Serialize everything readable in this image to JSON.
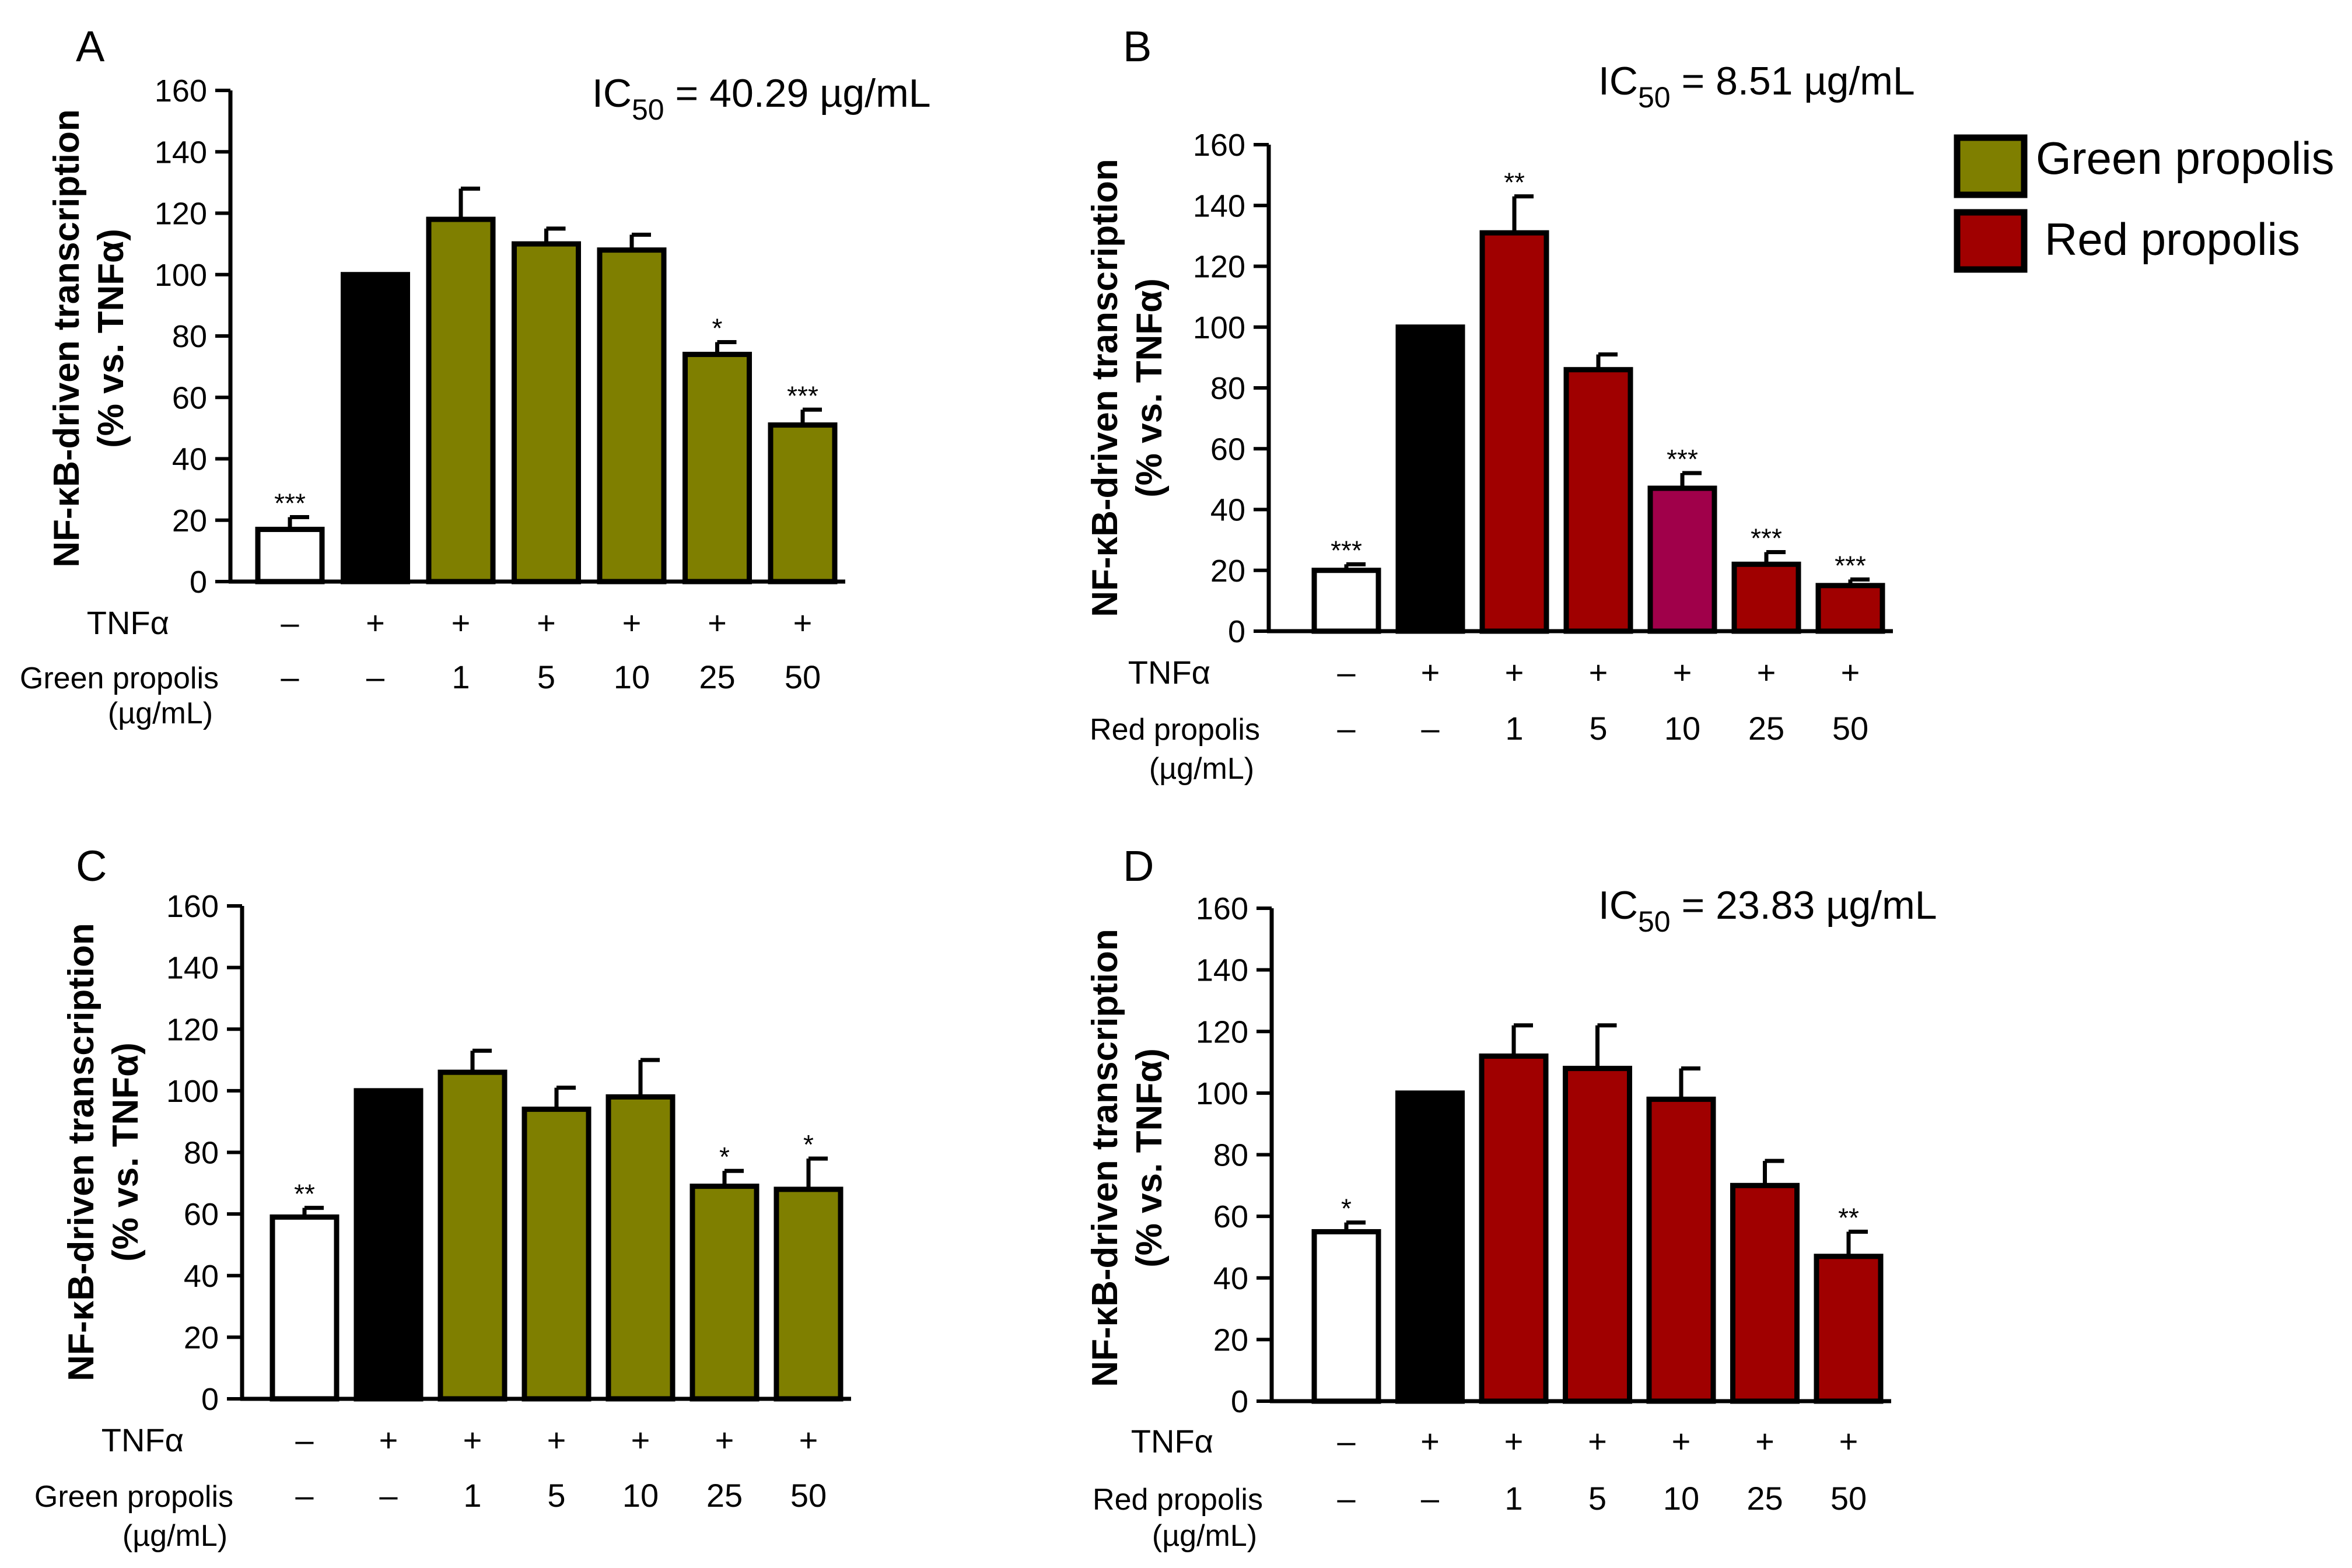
{
  "legend": {
    "items": [
      {
        "label": "Green propolis",
        "color": "#7f7f00"
      },
      {
        "label": "Red propolis",
        "color": "#a00000"
      }
    ]
  },
  "chart_data": [
    {
      "panel": "A",
      "type": "bar",
      "ic50": {
        "prefix": "IC",
        "sub": "50",
        "suffix": " = 40.29 µg/mL"
      },
      "ylabel": [
        "NF-κB-driven transcription",
        "(% vs. TNFα)"
      ],
      "ylim": [
        0,
        160
      ],
      "yticks": [
        0,
        20,
        40,
        60,
        80,
        100,
        120,
        140,
        160
      ],
      "values": [
        17,
        100,
        118,
        110,
        108,
        74,
        51
      ],
      "errors": [
        4,
        0,
        10,
        5,
        5,
        4,
        5
      ],
      "significance": [
        "***",
        "",
        "",
        "",
        "",
        "*",
        "***"
      ],
      "bar_colors": [
        "#ffffff",
        "#000000",
        "#7f7f00",
        "#7f7f00",
        "#7f7f00",
        "#7f7f00",
        "#7f7f00"
      ],
      "row1_label": "TNFα",
      "row1": [
        "–",
        "+",
        "+",
        "+",
        "+",
        "+",
        "+"
      ],
      "row2_label": [
        "Green propolis",
        "(µg/mL)"
      ],
      "row2": [
        "–",
        "–",
        "1",
        "5",
        "10",
        "25",
        "50"
      ]
    },
    {
      "panel": "B",
      "type": "bar",
      "ic50": {
        "prefix": "IC",
        "sub": "50",
        "suffix": " = 8.51 µg/mL"
      },
      "ylabel": [
        "NF-κB-driven transcription",
        "(% vs. TNFα)"
      ],
      "ylim": [
        0,
        160
      ],
      "yticks": [
        0,
        20,
        40,
        60,
        80,
        100,
        120,
        140,
        160
      ],
      "values": [
        20,
        100,
        131,
        86,
        47,
        22,
        15
      ],
      "errors": [
        2,
        0,
        12,
        5,
        5,
        4,
        2
      ],
      "significance": [
        "***",
        "",
        "**",
        "",
        "***",
        "***",
        "***"
      ],
      "bar_colors": [
        "#ffffff",
        "#000000",
        "#a00000",
        "#a00000",
        "#a0004a",
        "#a00000",
        "#a00000"
      ],
      "row1_label": "TNFα",
      "row1": [
        "–",
        "+",
        "+",
        "+",
        "+",
        "+",
        "+"
      ],
      "row2_label": [
        "Red propolis",
        "(µg/mL)"
      ],
      "row2": [
        "–",
        "–",
        "1",
        "5",
        "10",
        "25",
        "50"
      ]
    },
    {
      "panel": "C",
      "type": "bar",
      "ic50": null,
      "ylabel": [
        "NF-κB-driven transcription",
        "(% vs. TNFα)"
      ],
      "ylim": [
        0,
        160
      ],
      "yticks": [
        0,
        20,
        40,
        60,
        80,
        100,
        120,
        140,
        160
      ],
      "values": [
        59,
        100,
        106,
        94,
        98,
        69,
        68
      ],
      "errors": [
        3,
        0,
        7,
        7,
        12,
        5,
        10
      ],
      "significance": [
        "**",
        "",
        "",
        "",
        "",
        "*",
        "*"
      ],
      "bar_colors": [
        "#ffffff",
        "#000000",
        "#7f7f00",
        "#7f7f00",
        "#7f7f00",
        "#7f7f00",
        "#7f7f00"
      ],
      "row1_label": "TNFα",
      "row1": [
        "–",
        "+",
        "+",
        "+",
        "+",
        "+",
        "+"
      ],
      "row2_label": [
        "Green propolis",
        "(µg/mL)"
      ],
      "row2": [
        "–",
        "–",
        "1",
        "5",
        "10",
        "25",
        "50"
      ]
    },
    {
      "panel": "D",
      "type": "bar",
      "ic50": {
        "prefix": "IC",
        "sub": "50",
        "suffix": " = 23.83 µg/mL"
      },
      "ylabel": [
        "NF-κB-driven transcription",
        "(% vs. TNFα)"
      ],
      "ylim": [
        0,
        160
      ],
      "yticks": [
        0,
        20,
        40,
        60,
        80,
        100,
        120,
        140,
        160
      ],
      "values": [
        55,
        100,
        112,
        108,
        98,
        70,
        47
      ],
      "errors": [
        3,
        0,
        10,
        14,
        10,
        8,
        8
      ],
      "significance": [
        "*",
        "",
        "",
        "",
        "",
        "",
        "**"
      ],
      "bar_colors": [
        "#ffffff",
        "#000000",
        "#a00000",
        "#a00000",
        "#a00000",
        "#a00000",
        "#a00000"
      ],
      "row1_label": "TNFα",
      "row1": [
        "–",
        "+",
        "+",
        "+",
        "+",
        "+",
        "+"
      ],
      "row2_label": [
        "Red propolis",
        "(µg/mL)"
      ],
      "row2": [
        "–",
        "–",
        "1",
        "5",
        "10",
        "25",
        "50"
      ]
    }
  ]
}
